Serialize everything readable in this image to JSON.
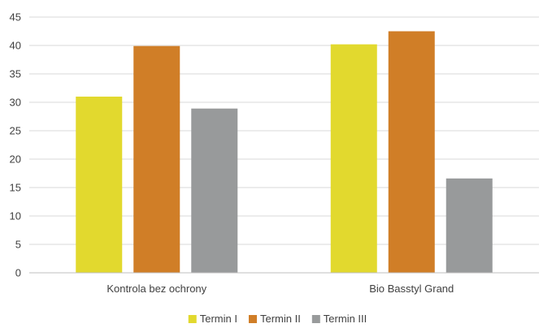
{
  "chart_data": {
    "type": "bar",
    "title": "",
    "xlabel": "",
    "ylabel": "",
    "categories": [
      "Kontrola bez ochrony",
      "Bio Basstyl Grand"
    ],
    "series": [
      {
        "name": "Termin I",
        "values": [
          31.0,
          40.2
        ],
        "color": "#e2d92e"
      },
      {
        "name": "Termin II",
        "values": [
          39.9,
          42.5
        ],
        "color": "#d07e27"
      },
      {
        "name": "Termin III",
        "values": [
          28.9,
          16.6
        ],
        "color": "#989a9b"
      }
    ],
    "ylim": [
      0,
      45
    ],
    "yticks": [
      0,
      5,
      10,
      15,
      20,
      25,
      30,
      35,
      40,
      45
    ],
    "grid": true,
    "legend_position": "bottom"
  }
}
